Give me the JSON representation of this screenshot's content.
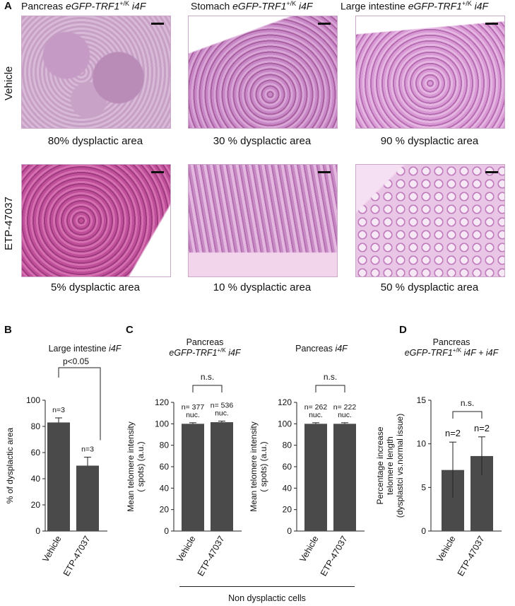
{
  "panel_a": {
    "label": "A",
    "columns": [
      {
        "title_pre": "Pancreas ",
        "title_italic": "eGFP-TRF1",
        "title_sup": "+/K",
        "title_post": " i4F"
      },
      {
        "title_pre": "Stomach ",
        "title_italic": "eGFP-TRF1",
        "title_sup": "+/K",
        "title_post": " i4F"
      },
      {
        "title_pre": "Large intestine ",
        "title_italic": "eGFP-TRF1",
        "title_sup": "+/K",
        "title_post": " i4F"
      }
    ],
    "rows": [
      "Vehicle",
      "ETP-47037"
    ],
    "captions": [
      [
        "80% dysplactic area",
        "30 % dysplactic area",
        "90 % dysplactic area"
      ],
      [
        "5% dysplactic area",
        "10 % dysplactic area",
        "50 % dysplactic area"
      ]
    ]
  },
  "panel_b": {
    "label": "B",
    "title_pre": "Large intestine ",
    "title_italic": "i4F"
  },
  "panel_c": {
    "label": "C",
    "title1_line1": "Pancreas",
    "title1_italic": "eGFP-TRF1",
    "title1_sup": "+/K",
    "title1_post": " i4F",
    "title2_pre": "Pancreas ",
    "title2_italic": "i4F",
    "footer": "Non dysplactic cells"
  },
  "panel_d": {
    "label": "D",
    "title_line1": "Pancreas",
    "title_italic": "eGFP-TRF1",
    "title_sup": "+/K",
    "title_post": " i4F + i4F"
  },
  "chart_data": [
    {
      "type": "bar",
      "categories": [
        "Vehicle",
        "ETP-47037"
      ],
      "values": [
        83,
        50
      ],
      "errors": [
        3.5,
        6.5
      ],
      "ylabel": "% of dysplactic area",
      "ylim": [
        0,
        100
      ],
      "yticks": [
        0,
        20,
        40,
        60,
        80,
        100
      ],
      "bar_labels": [
        "n=3",
        "n=3"
      ],
      "significance": "p<0.05"
    },
    {
      "type": "bar",
      "categories": [
        "Vehicle",
        "ETP-47037"
      ],
      "values": [
        100,
        101.5
      ],
      "errors": [
        1,
        1
      ],
      "ylabel": "Mean telomere intensity ( spots) (a.u.)",
      "ylim": [
        0,
        120
      ],
      "yticks": [
        0,
        20,
        40,
        60,
        80,
        100,
        120
      ],
      "bar_labels": [
        "n= 377 nuc.",
        "n= 536 nuc."
      ],
      "significance": "n.s."
    },
    {
      "type": "bar",
      "categories": [
        "Vehicle",
        "ETP-47037"
      ],
      "values": [
        100,
        100
      ],
      "errors": [
        1,
        1
      ],
      "ylabel": "Mean telomere intensity ( spots) (a.u.)",
      "ylim": [
        0,
        120
      ],
      "yticks": [
        0,
        20,
        40,
        60,
        80,
        100,
        120
      ],
      "bar_labels": [
        "n= 262 nuc.",
        "n= 222 nuc."
      ],
      "significance": "n.s."
    },
    {
      "type": "bar",
      "categories": [
        "Vehicle",
        "ETP-47037"
      ],
      "values": [
        7,
        8.6
      ],
      "errors": [
        3.2,
        2.2
      ],
      "ylabel": "Percentage increase telomere length (dysplastci vs.normal issue)",
      "ylim": [
        0,
        15
      ],
      "yticks": [
        0,
        5,
        10,
        15
      ],
      "bar_labels": [
        "n=2",
        "n=2"
      ],
      "significance": "n.s."
    }
  ]
}
